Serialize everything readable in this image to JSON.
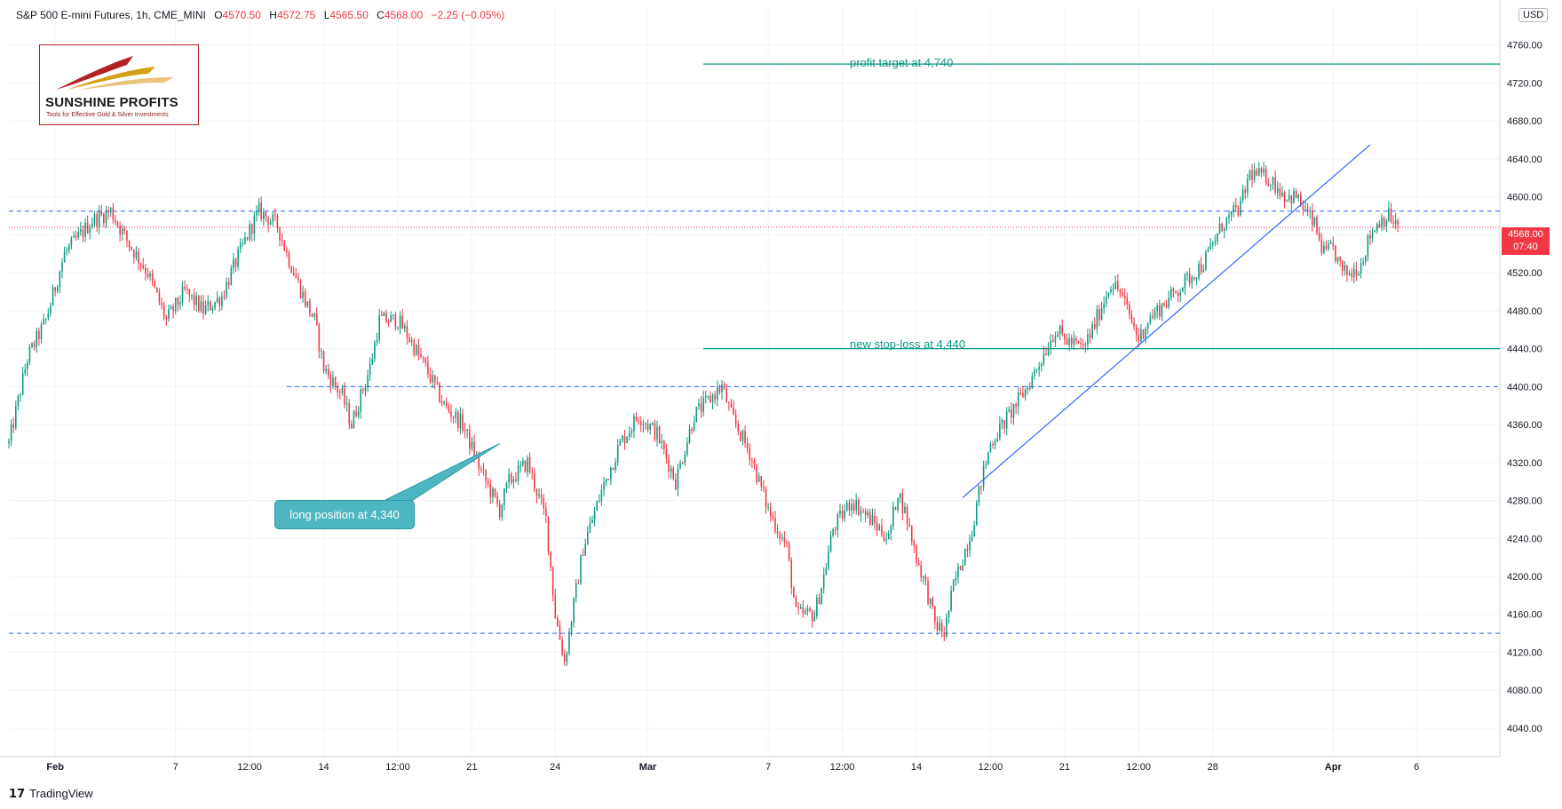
{
  "header": {
    "symbol": "S&P 500 E-mini Futures, 1h, CME_MINI",
    "open_label": "O",
    "open": "4570.50",
    "high_label": "H",
    "high": "4572.75",
    "low_label": "L",
    "low": "4565.50",
    "close_label": "C",
    "close": "4568.00",
    "change": "−2.25 (−0.05%)",
    "currency": "USD"
  },
  "logo": {
    "title": "SUNSHINE PROFITS",
    "tagline": "Tools for Effective Gold & Silver Investments"
  },
  "annotations": {
    "profit_target": "profit target at 4,740",
    "stop_loss": "new stop-loss at 4,440",
    "long_position": "long position at 4,340"
  },
  "price_tag": {
    "price": "4568.00",
    "countdown": "07:40"
  },
  "footer": {
    "icon": "tradingview-logo-icon",
    "brand": "TradingView"
  },
  "colors": {
    "up": "#089981",
    "down": "#f23645",
    "dashed_level": "#2962ff",
    "annotation": "#089981",
    "trendline": "#2962ff",
    "callout": "#4db6c1"
  },
  "chart_data": {
    "type": "candlestick",
    "title": "S&P 500 E-mini Futures, 1h, CME_MINI",
    "ylim": [
      4010,
      4800
    ],
    "yticks": [
      4040,
      4080,
      4120,
      4160,
      4200,
      4240,
      4280,
      4320,
      4360,
      4400,
      4440,
      4480,
      4520,
      4560,
      4600,
      4640,
      4680,
      4720,
      4760
    ],
    "xticks": [
      {
        "label": "Feb",
        "bold": true,
        "t": 5
      },
      {
        "label": "7",
        "t": 18
      },
      {
        "label": "12:00",
        "t": 26
      },
      {
        "label": "14",
        "t": 34
      },
      {
        "label": "12:00",
        "t": 42
      },
      {
        "label": "21",
        "t": 50
      },
      {
        "label": "24",
        "t": 59
      },
      {
        "label": "Mar",
        "bold": true,
        "t": 69
      },
      {
        "label": "7",
        "t": 82
      },
      {
        "label": "12:00",
        "t": 90
      },
      {
        "label": "14",
        "t": 98
      },
      {
        "label": "12:00",
        "t": 106
      },
      {
        "label": "21",
        "t": 114
      },
      {
        "label": "12:00",
        "t": 122
      },
      {
        "label": "28",
        "t": 130
      },
      {
        "label": "Apr",
        "bold": true,
        "t": 143
      },
      {
        "label": "6",
        "t": 152
      }
    ],
    "t_range": [
      0,
      161
    ],
    "last_t": 150,
    "path": [
      [
        0,
        4340
      ],
      [
        2,
        4430
      ],
      [
        4,
        4470
      ],
      [
        6,
        4540
      ],
      [
        9,
        4575
      ],
      [
        11,
        4585
      ],
      [
        13,
        4550
      ],
      [
        15,
        4520
      ],
      [
        17,
        4470
      ],
      [
        19,
        4500
      ],
      [
        21,
        4480
      ],
      [
        23,
        4495
      ],
      [
        24,
        4520
      ],
      [
        26,
        4565
      ],
      [
        27,
        4585
      ],
      [
        29,
        4570
      ],
      [
        30,
        4540
      ],
      [
        32,
        4490
      ],
      [
        33,
        4470
      ],
      [
        34,
        4420
      ],
      [
        36,
        4390
      ],
      [
        37,
        4360
      ],
      [
        39,
        4420
      ],
      [
        40,
        4470
      ],
      [
        42,
        4470
      ],
      [
        43,
        4455
      ],
      [
        45,
        4420
      ],
      [
        47,
        4380
      ],
      [
        49,
        4360
      ],
      [
        51,
        4310
      ],
      [
        53,
        4270
      ],
      [
        54,
        4300
      ],
      [
        56,
        4320
      ],
      [
        58,
        4260
      ],
      [
        59,
        4160
      ],
      [
        60,
        4110
      ],
      [
        62,
        4230
      ],
      [
        64,
        4290
      ],
      [
        66,
        4340
      ],
      [
        68,
        4370
      ],
      [
        70,
        4350
      ],
      [
        72,
        4300
      ],
      [
        74,
        4370
      ],
      [
        76,
        4390
      ],
      [
        77,
        4400
      ],
      [
        78,
        4370
      ],
      [
        80,
        4330
      ],
      [
        82,
        4270
      ],
      [
        84,
        4230
      ],
      [
        85,
        4160
      ],
      [
        87,
        4160
      ],
      [
        88,
        4200
      ],
      [
        89,
        4250
      ],
      [
        91,
        4280
      ],
      [
        93,
        4260
      ],
      [
        95,
        4240
      ],
      [
        96,
        4290
      ],
      [
        97,
        4260
      ],
      [
        98,
        4220
      ],
      [
        99,
        4190
      ],
      [
        100,
        4150
      ],
      [
        101,
        4140
      ],
      [
        102,
        4190
      ],
      [
        104,
        4250
      ],
      [
        105,
        4300
      ],
      [
        106,
        4340
      ],
      [
        108,
        4370
      ],
      [
        110,
        4400
      ],
      [
        111,
        4420
      ],
      [
        113,
        4460
      ],
      [
        114,
        4450
      ],
      [
        116,
        4440
      ],
      [
        117,
        4460
      ],
      [
        119,
        4510
      ],
      [
        120,
        4500
      ],
      [
        122,
        4450
      ],
      [
        123,
        4470
      ],
      [
        125,
        4490
      ],
      [
        127,
        4510
      ],
      [
        129,
        4530
      ],
      [
        131,
        4570
      ],
      [
        133,
        4590
      ],
      [
        134,
        4625
      ],
      [
        136,
        4620
      ],
      [
        138,
        4600
      ],
      [
        139,
        4600
      ],
      [
        141,
        4570
      ],
      [
        142,
        4540
      ],
      [
        143,
        4545
      ],
      [
        144,
        4520
      ],
      [
        145,
        4520
      ],
      [
        146,
        4530
      ],
      [
        147,
        4560
      ],
      [
        148,
        4575
      ],
      [
        149,
        4580
      ],
      [
        150,
        4568
      ]
    ],
    "dashed_levels": [
      {
        "price": 4585,
        "t_start": 0
      },
      {
        "price": 4400,
        "t_start": 30
      },
      {
        "price": 4140,
        "t_start": 0
      }
    ],
    "current_price": 4568.0,
    "solid_levels": [
      {
        "price": 4740,
        "t_start": 75
      },
      {
        "price": 4440,
        "t_start": 75
      }
    ],
    "trendline": {
      "t1": 103,
      "p1": 4283,
      "t2": 147,
      "p2": 4655
    },
    "callout_arrow_to": {
      "t": 53,
      "p": 4340
    }
  }
}
